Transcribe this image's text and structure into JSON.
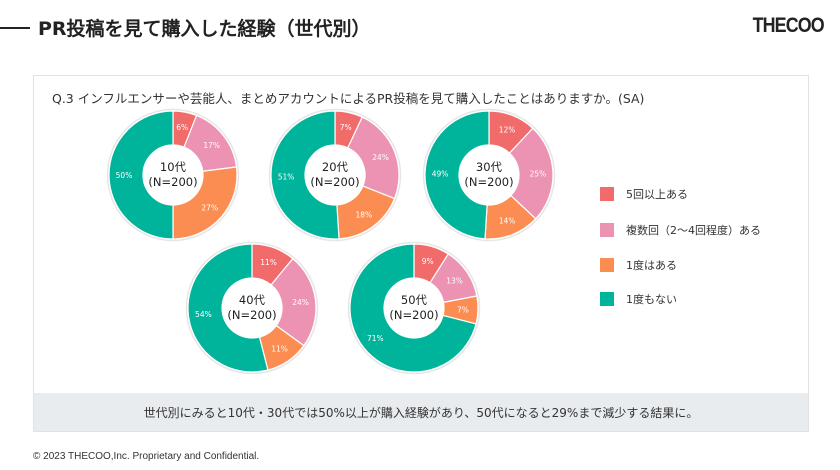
{
  "header": {
    "title": "PR投稿を見て購入した経験（世代別）",
    "logo": "THECOO"
  },
  "question": "Q.3 インフルエンサーや芸能人、まとめアカウントによるPR投稿を見て購入したことはありますか。(SA)",
  "summary": "世代別にみると10代・30代では50%以上が購入経験があり、50代になると29%まで減少する結果に。",
  "footer": "© 2023 THECOO,Inc. Proprietary and Confidential.",
  "chart_data": {
    "type": "pie",
    "series_labels": [
      "5回以上ある",
      "複数回（2〜4回程度）ある",
      "1度はある",
      "1度もない"
    ],
    "colors": [
      "#f26b6b",
      "#ec92b3",
      "#fc8d52",
      "#00b39b"
    ],
    "groups": [
      {
        "name": "10代",
        "n": "(N=200)",
        "values": [
          6,
          17,
          27,
          50
        ]
      },
      {
        "name": "20代",
        "n": "(N=200)",
        "values": [
          7,
          24,
          18,
          51
        ]
      },
      {
        "name": "30代",
        "n": "(N=200)",
        "values": [
          12,
          25,
          14,
          49
        ]
      },
      {
        "name": "40代",
        "n": "(N=200)",
        "values": [
          11,
          24,
          11,
          54
        ]
      },
      {
        "name": "50代",
        "n": "(N=200)",
        "values": [
          9,
          13,
          7,
          71
        ]
      }
    ]
  }
}
